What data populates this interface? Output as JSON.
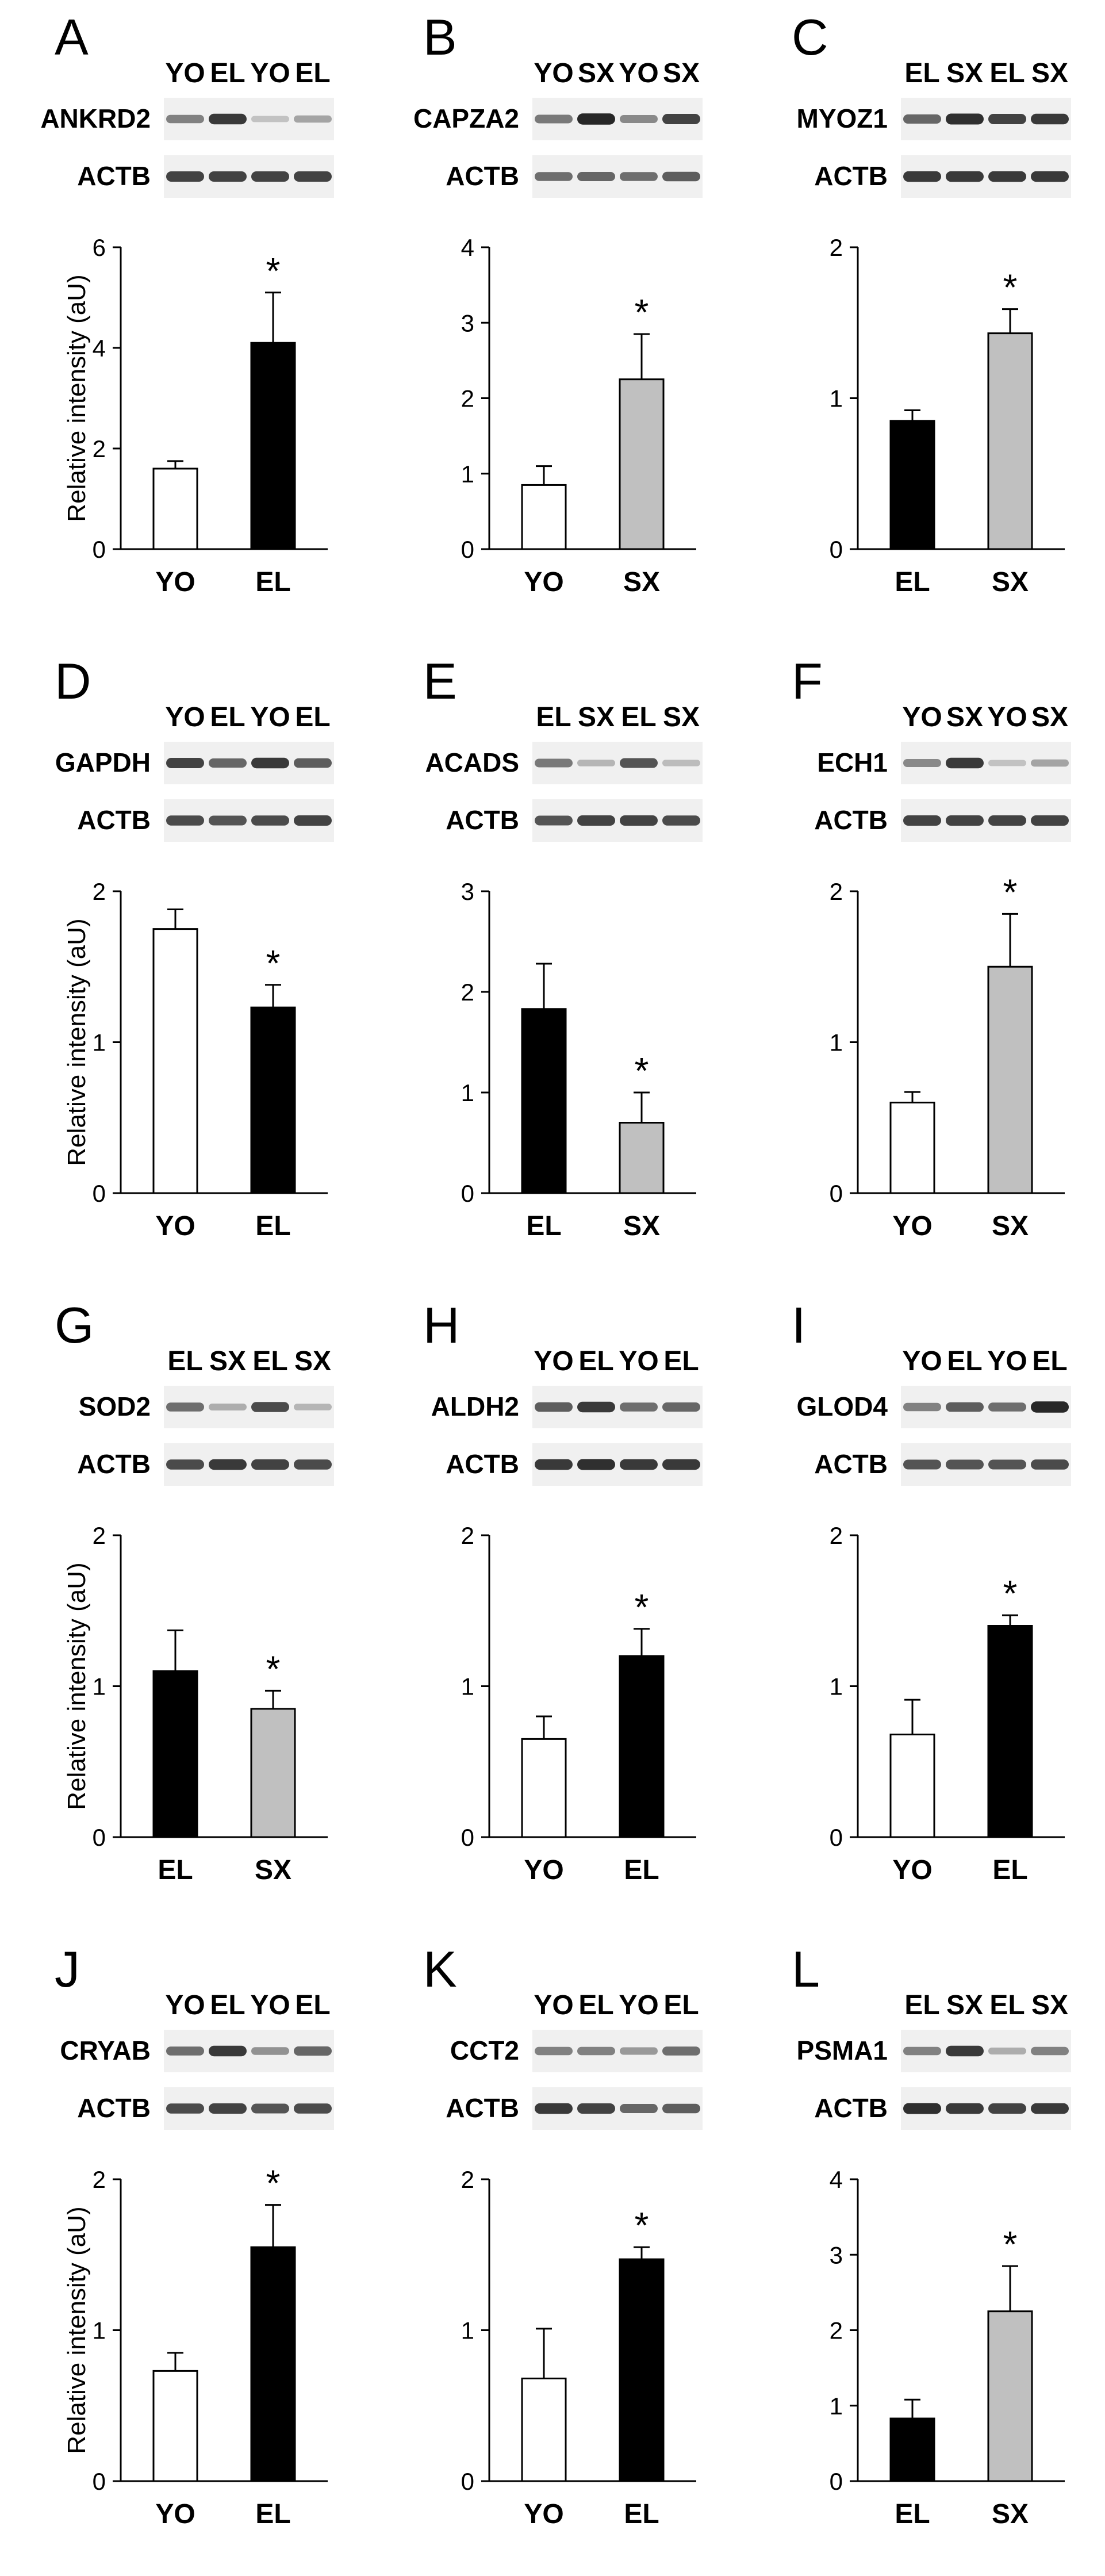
{
  "figure": {
    "ylabel": "Relative intensity (aU)",
    "significance_marker": "*",
    "colors": {
      "YO": "#ffffff",
      "EL": "#000000",
      "SX": "#c0c0c0",
      "axis": "#000000",
      "blot_background": "#f0f0f0",
      "band": "#1e1e1e"
    }
  },
  "panels": [
    {
      "letter": "A",
      "lanes": [
        "YO",
        "EL",
        "YO",
        "EL"
      ],
      "blots": [
        {
          "label": "ANKRD2",
          "bands": [
            0.45,
            0.85,
            0.08,
            0.25
          ]
        },
        {
          "label": "ACTB",
          "bands": [
            0.8,
            0.8,
            0.8,
            0.8
          ]
        }
      ],
      "chart_data": {
        "type": "bar",
        "categories": [
          "YO",
          "EL"
        ],
        "values": [
          1.6,
          4.1
        ],
        "errors": [
          0.15,
          1.0
        ],
        "significant": [
          false,
          true
        ],
        "ylim": [
          0,
          6
        ],
        "yticks": [
          0,
          2,
          4,
          6
        ],
        "ylabel": "Relative intensity (aU)"
      }
    },
    {
      "letter": "B",
      "lanes": [
        "YO",
        "SX",
        "YO",
        "SX"
      ],
      "blots": [
        {
          "label": "CAPZA2",
          "bands": [
            0.5,
            0.95,
            0.4,
            0.8
          ]
        },
        {
          "label": "ACTB",
          "bands": [
            0.55,
            0.6,
            0.55,
            0.65
          ]
        }
      ],
      "chart_data": {
        "type": "bar",
        "categories": [
          "YO",
          "SX"
        ],
        "values": [
          0.85,
          2.25
        ],
        "errors": [
          0.25,
          0.6
        ],
        "significant": [
          false,
          true
        ],
        "ylim": [
          0,
          4
        ],
        "yticks": [
          0,
          1,
          2,
          3,
          4
        ],
        "ylabel": ""
      }
    },
    {
      "letter": "C",
      "lanes": [
        "EL",
        "SX",
        "EL",
        "SX"
      ],
      "blots": [
        {
          "label": "MYOZ1",
          "bands": [
            0.6,
            0.9,
            0.8,
            0.85
          ]
        },
        {
          "label": "ACTB",
          "bands": [
            0.85,
            0.85,
            0.85,
            0.85
          ]
        }
      ],
      "chart_data": {
        "type": "bar",
        "categories": [
          "EL",
          "SX"
        ],
        "values": [
          0.85,
          1.43
        ],
        "errors": [
          0.07,
          0.16
        ],
        "significant": [
          false,
          true
        ],
        "ylim": [
          0,
          2
        ],
        "yticks": [
          0,
          1,
          2
        ],
        "ylabel": ""
      }
    },
    {
      "letter": "D",
      "lanes": [
        "YO",
        "EL",
        "YO",
        "EL"
      ],
      "blots": [
        {
          "label": "GAPDH",
          "bands": [
            0.8,
            0.6,
            0.85,
            0.65
          ]
        },
        {
          "label": "ACTB",
          "bands": [
            0.75,
            0.7,
            0.75,
            0.8
          ]
        }
      ],
      "chart_data": {
        "type": "bar",
        "categories": [
          "YO",
          "EL"
        ],
        "values": [
          1.75,
          1.23
        ],
        "errors": [
          0.13,
          0.15
        ],
        "significant": [
          false,
          true
        ],
        "ylim": [
          0,
          2
        ],
        "yticks": [
          0,
          1,
          2
        ],
        "ylabel": "Relative intensity (aU)"
      }
    },
    {
      "letter": "E",
      "lanes": [
        "EL",
        "SX",
        "EL",
        "SX"
      ],
      "blots": [
        {
          "label": "ACADS",
          "bands": [
            0.5,
            0.15,
            0.7,
            0.12
          ]
        },
        {
          "label": "ACTB",
          "bands": [
            0.7,
            0.8,
            0.8,
            0.75
          ]
        }
      ],
      "chart_data": {
        "type": "bar",
        "categories": [
          "EL",
          "SX"
        ],
        "values": [
          1.83,
          0.7
        ],
        "errors": [
          0.45,
          0.3
        ],
        "significant": [
          false,
          true
        ],
        "ylim": [
          0,
          3
        ],
        "yticks": [
          0,
          1,
          2,
          3
        ],
        "ylabel": ""
      }
    },
    {
      "letter": "F",
      "lanes": [
        "YO",
        "SX",
        "YO",
        "SX"
      ],
      "blots": [
        {
          "label": "ECH1",
          "bands": [
            0.4,
            0.85,
            0.08,
            0.25
          ]
        },
        {
          "label": "ACTB",
          "bands": [
            0.8,
            0.8,
            0.8,
            0.8
          ]
        }
      ],
      "chart_data": {
        "type": "bar",
        "categories": [
          "YO",
          "SX"
        ],
        "values": [
          0.6,
          1.5
        ],
        "errors": [
          0.07,
          0.35
        ],
        "significant": [
          false,
          true
        ],
        "ylim": [
          0,
          2
        ],
        "yticks": [
          0,
          1,
          2
        ],
        "ylabel": ""
      }
    },
    {
      "letter": "G",
      "lanes": [
        "EL",
        "SX",
        "EL",
        "SX"
      ],
      "blots": [
        {
          "label": "SOD2",
          "bands": [
            0.55,
            0.2,
            0.75,
            0.15
          ]
        },
        {
          "label": "ACTB",
          "bands": [
            0.75,
            0.85,
            0.8,
            0.75
          ]
        }
      ],
      "chart_data": {
        "type": "bar",
        "categories": [
          "EL",
          "SX"
        ],
        "values": [
          1.1,
          0.85
        ],
        "errors": [
          0.27,
          0.12
        ],
        "significant": [
          false,
          true
        ],
        "ylim": [
          0,
          2
        ],
        "yticks": [
          0,
          1,
          2
        ],
        "ylabel": "Relative intensity (aU)"
      }
    },
    {
      "letter": "H",
      "lanes": [
        "YO",
        "EL",
        "YO",
        "EL"
      ],
      "blots": [
        {
          "label": "ALDH2",
          "bands": [
            0.65,
            0.85,
            0.55,
            0.6
          ]
        },
        {
          "label": "ACTB",
          "bands": [
            0.85,
            0.9,
            0.85,
            0.85
          ]
        }
      ],
      "chart_data": {
        "type": "bar",
        "categories": [
          "YO",
          "EL"
        ],
        "values": [
          0.65,
          1.2
        ],
        "errors": [
          0.15,
          0.18
        ],
        "significant": [
          false,
          true
        ],
        "ylim": [
          0,
          2
        ],
        "yticks": [
          0,
          1,
          2
        ],
        "ylabel": ""
      }
    },
    {
      "letter": "I",
      "lanes": [
        "YO",
        "EL",
        "YO",
        "EL"
      ],
      "blots": [
        {
          "label": "GLOD4",
          "bands": [
            0.45,
            0.65,
            0.55,
            0.95
          ]
        },
        {
          "label": "ACTB",
          "bands": [
            0.7,
            0.7,
            0.7,
            0.75
          ]
        }
      ],
      "chart_data": {
        "type": "bar",
        "categories": [
          "YO",
          "EL"
        ],
        "values": [
          0.68,
          1.4
        ],
        "errors": [
          0.23,
          0.07
        ],
        "significant": [
          false,
          true
        ],
        "ylim": [
          0,
          2
        ],
        "yticks": [
          0,
          1,
          2
        ],
        "ylabel": ""
      }
    },
    {
      "letter": "J",
      "lanes": [
        "YO",
        "EL",
        "YO",
        "EL"
      ],
      "blots": [
        {
          "label": "CRYAB",
          "bands": [
            0.55,
            0.85,
            0.35,
            0.6
          ]
        },
        {
          "label": "ACTB",
          "bands": [
            0.75,
            0.8,
            0.7,
            0.75
          ]
        }
      ],
      "chart_data": {
        "type": "bar",
        "categories": [
          "YO",
          "EL"
        ],
        "values": [
          0.73,
          1.55
        ],
        "errors": [
          0.12,
          0.28
        ],
        "significant": [
          false,
          true
        ],
        "ylim": [
          0,
          2
        ],
        "yticks": [
          0,
          1,
          2
        ],
        "ylabel": "Relative intensity (aU)"
      }
    },
    {
      "letter": "K",
      "lanes": [
        "YO",
        "EL",
        "YO",
        "EL"
      ],
      "blots": [
        {
          "label": "CCT2",
          "bands": [
            0.45,
            0.45,
            0.3,
            0.55
          ]
        },
        {
          "label": "ACTB",
          "bands": [
            0.85,
            0.8,
            0.6,
            0.65
          ]
        }
      ],
      "chart_data": {
        "type": "bar",
        "categories": [
          "YO",
          "EL"
        ],
        "values": [
          0.68,
          1.47
        ],
        "errors": [
          0.33,
          0.08
        ],
        "significant": [
          false,
          true
        ],
        "ylim": [
          0,
          2
        ],
        "yticks": [
          0,
          1,
          2
        ],
        "ylabel": ""
      }
    },
    {
      "letter": "L",
      "lanes": [
        "EL",
        "SX",
        "EL",
        "SX"
      ],
      "blots": [
        {
          "label": "PSMA1",
          "bands": [
            0.45,
            0.85,
            0.2,
            0.45
          ]
        },
        {
          "label": "ACTB",
          "bands": [
            0.9,
            0.85,
            0.8,
            0.85
          ]
        }
      ],
      "chart_data": {
        "type": "bar",
        "categories": [
          "EL",
          "SX"
        ],
        "values": [
          0.83,
          2.25
        ],
        "errors": [
          0.25,
          0.6
        ],
        "significant": [
          false,
          true
        ],
        "ylim": [
          0,
          4
        ],
        "yticks": [
          0,
          1,
          2,
          3,
          4
        ],
        "ylabel": ""
      }
    }
  ]
}
